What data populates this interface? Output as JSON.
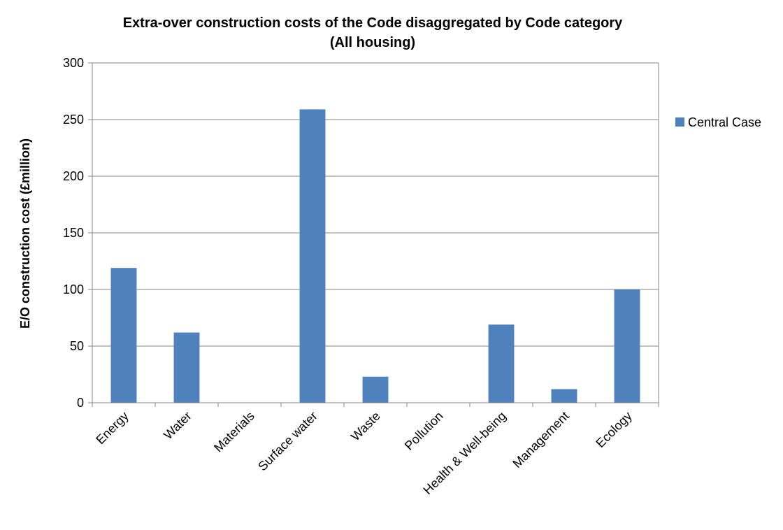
{
  "chart_data": {
    "type": "bar",
    "title": "Extra-over construction costs of the Code disaggregated by Code category",
    "subtitle": "(All housing)",
    "ylabel": "E/O construction cost (£million)",
    "xlabel": "",
    "ylim": [
      0,
      300
    ],
    "yticks": [
      0,
      50,
      100,
      150,
      200,
      250,
      300
    ],
    "categories": [
      "Energy",
      "Water",
      "Materials",
      "Surface water",
      "Waste",
      "Pollution",
      "Health & Well-being",
      "Management",
      "Ecology"
    ],
    "series": [
      {
        "name": "Central Case",
        "color": "#4f81bd",
        "values": [
          119,
          62,
          0,
          259,
          23,
          0,
          69,
          12,
          100
        ]
      }
    ],
    "grid": true,
    "legend": "right"
  }
}
